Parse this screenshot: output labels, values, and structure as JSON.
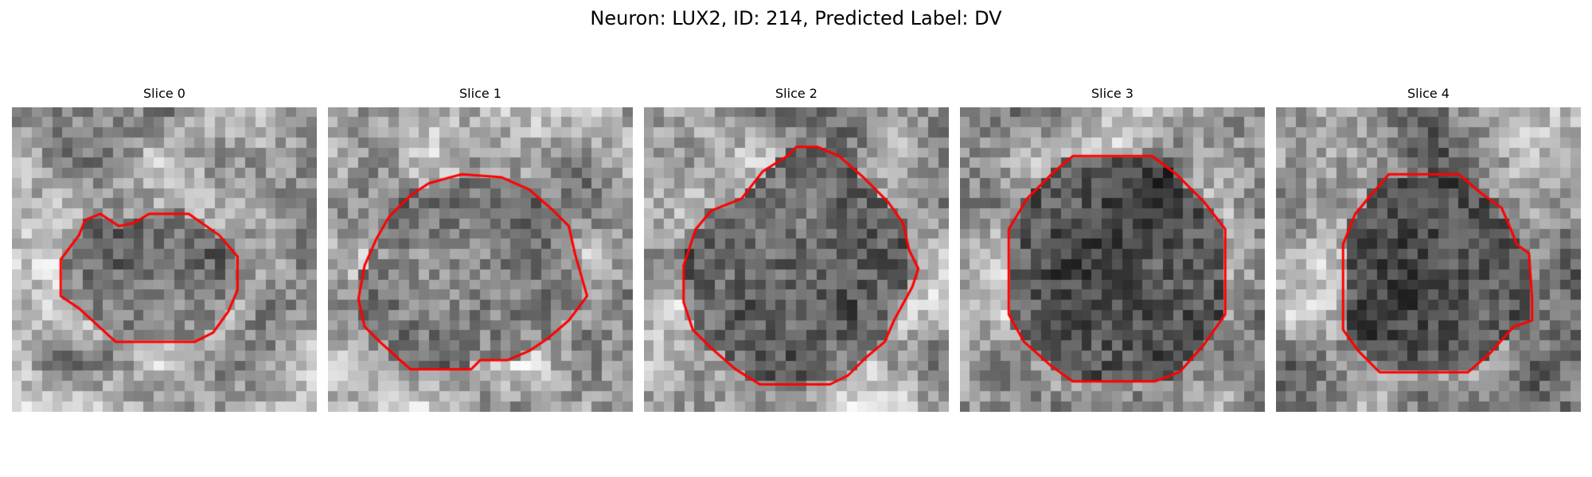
{
  "figure": {
    "title": "Neuron: LUX2, ID: 214, Predicted Label: DV"
  },
  "colors": {
    "outline": "#ff0000",
    "background": "#ffffff"
  },
  "panels": [
    {
      "title": "Slice 0",
      "seed": 11,
      "core_level": 0.46,
      "surround_level": 0.66,
      "contour": [
        [
          0.24,
          0.37
        ],
        [
          0.29,
          0.35
        ],
        [
          0.35,
          0.39
        ],
        [
          0.4,
          0.38
        ],
        [
          0.45,
          0.35
        ],
        [
          0.58,
          0.35
        ],
        [
          0.68,
          0.42
        ],
        [
          0.74,
          0.49
        ],
        [
          0.74,
          0.6
        ],
        [
          0.71,
          0.67
        ],
        [
          0.66,
          0.74
        ],
        [
          0.6,
          0.77
        ],
        [
          0.34,
          0.77
        ],
        [
          0.22,
          0.66
        ],
        [
          0.16,
          0.62
        ],
        [
          0.16,
          0.5
        ],
        [
          0.22,
          0.42
        ]
      ]
    },
    {
      "title": "Slice 1",
      "seed": 23,
      "core_level": 0.48,
      "surround_level": 0.68,
      "contour": [
        [
          0.2,
          0.36
        ],
        [
          0.27,
          0.29
        ],
        [
          0.33,
          0.25
        ],
        [
          0.4,
          0.23
        ],
        [
          0.44,
          0.22
        ],
        [
          0.57,
          0.23
        ],
        [
          0.66,
          0.27
        ],
        [
          0.74,
          0.34
        ],
        [
          0.79,
          0.39
        ],
        [
          0.81,
          0.48
        ],
        [
          0.85,
          0.62
        ],
        [
          0.79,
          0.7
        ],
        [
          0.72,
          0.76
        ],
        [
          0.66,
          0.8
        ],
        [
          0.59,
          0.83
        ],
        [
          0.5,
          0.83
        ],
        [
          0.47,
          0.86
        ],
        [
          0.27,
          0.86
        ],
        [
          0.17,
          0.77
        ],
        [
          0.12,
          0.72
        ],
        [
          0.1,
          0.63
        ],
        [
          0.12,
          0.52
        ],
        [
          0.16,
          0.43
        ]
      ]
    },
    {
      "title": "Slice 2",
      "seed": 37,
      "core_level": 0.4,
      "surround_level": 0.66,
      "contour": [
        [
          0.32,
          0.3
        ],
        [
          0.39,
          0.21
        ],
        [
          0.47,
          0.16
        ],
        [
          0.5,
          0.13
        ],
        [
          0.57,
          0.13
        ],
        [
          0.64,
          0.16
        ],
        [
          0.72,
          0.23
        ],
        [
          0.8,
          0.31
        ],
        [
          0.85,
          0.38
        ],
        [
          0.87,
          0.47
        ],
        [
          0.9,
          0.53
        ],
        [
          0.88,
          0.59
        ],
        [
          0.82,
          0.7
        ],
        [
          0.79,
          0.77
        ],
        [
          0.73,
          0.82
        ],
        [
          0.67,
          0.88
        ],
        [
          0.61,
          0.91
        ],
        [
          0.38,
          0.91
        ],
        [
          0.3,
          0.86
        ],
        [
          0.22,
          0.79
        ],
        [
          0.16,
          0.73
        ],
        [
          0.13,
          0.64
        ],
        [
          0.13,
          0.52
        ],
        [
          0.17,
          0.4
        ],
        [
          0.22,
          0.34
        ]
      ]
    },
    {
      "title": "Slice 3",
      "seed": 53,
      "core_level": 0.33,
      "surround_level": 0.68,
      "contour": [
        [
          0.31,
          0.21
        ],
        [
          0.37,
          0.16
        ],
        [
          0.63,
          0.16
        ],
        [
          0.71,
          0.22
        ],
        [
          0.8,
          0.31
        ],
        [
          0.87,
          0.4
        ],
        [
          0.87,
          0.68
        ],
        [
          0.8,
          0.78
        ],
        [
          0.72,
          0.87
        ],
        [
          0.64,
          0.9
        ],
        [
          0.37,
          0.9
        ],
        [
          0.3,
          0.85
        ],
        [
          0.21,
          0.77
        ],
        [
          0.16,
          0.68
        ],
        [
          0.16,
          0.4
        ],
        [
          0.22,
          0.3
        ]
      ]
    },
    {
      "title": "Slice 4",
      "seed": 71,
      "core_level": 0.32,
      "surround_level": 0.56,
      "contour": [
        [
          0.26,
          0.35
        ],
        [
          0.31,
          0.29
        ],
        [
          0.37,
          0.22
        ],
        [
          0.6,
          0.22
        ],
        [
          0.67,
          0.28
        ],
        [
          0.74,
          0.33
        ],
        [
          0.77,
          0.4
        ],
        [
          0.79,
          0.45
        ],
        [
          0.83,
          0.48
        ],
        [
          0.84,
          0.63
        ],
        [
          0.84,
          0.7
        ],
        [
          0.78,
          0.72
        ],
        [
          0.7,
          0.81
        ],
        [
          0.63,
          0.87
        ],
        [
          0.34,
          0.87
        ],
        [
          0.27,
          0.8
        ],
        [
          0.22,
          0.73
        ],
        [
          0.22,
          0.45
        ]
      ]
    }
  ]
}
